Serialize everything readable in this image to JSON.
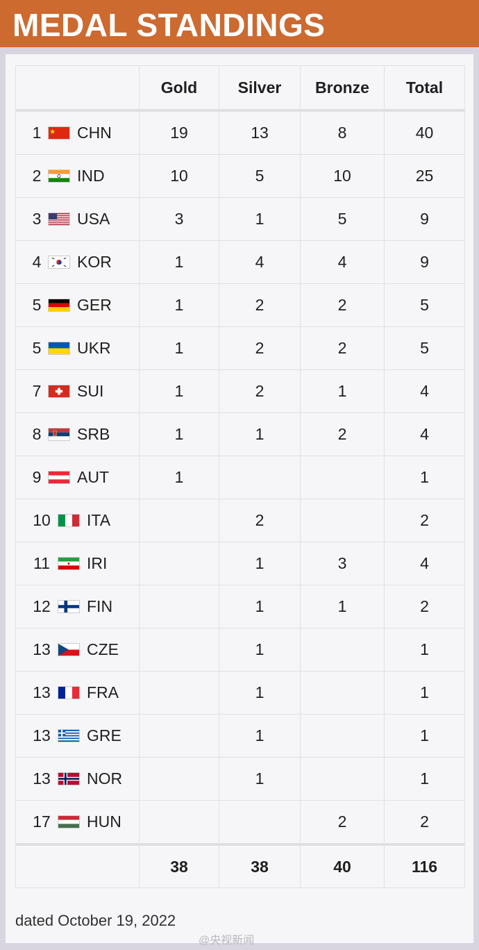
{
  "header": {
    "title": "MEDAL STANDINGS"
  },
  "columns": {
    "gold": "Gold",
    "silver": "Silver",
    "bronze": "Bronze",
    "total": "Total"
  },
  "rows": [
    {
      "rank": "1",
      "code": "CHN",
      "flag": "flag-china",
      "gold": "19",
      "silver": "13",
      "bronze": "8",
      "total": "40"
    },
    {
      "rank": "2",
      "code": "IND",
      "flag": "flag-india",
      "gold": "10",
      "silver": "5",
      "bronze": "10",
      "total": "25"
    },
    {
      "rank": "3",
      "code": "USA",
      "flag": "flag-usa",
      "gold": "3",
      "silver": "1",
      "bronze": "5",
      "total": "9"
    },
    {
      "rank": "4",
      "code": "KOR",
      "flag": "flag-korea",
      "gold": "1",
      "silver": "4",
      "bronze": "4",
      "total": "9"
    },
    {
      "rank": "5",
      "code": "GER",
      "flag": "flag-germany",
      "gold": "1",
      "silver": "2",
      "bronze": "2",
      "total": "5"
    },
    {
      "rank": "5",
      "code": "UKR",
      "flag": "flag-ukraine",
      "gold": "1",
      "silver": "2",
      "bronze": "2",
      "total": "5"
    },
    {
      "rank": "7",
      "code": "SUI",
      "flag": "flag-switzerland",
      "gold": "1",
      "silver": "2",
      "bronze": "1",
      "total": "4"
    },
    {
      "rank": "8",
      "code": "SRB",
      "flag": "flag-serbia",
      "gold": "1",
      "silver": "1",
      "bronze": "2",
      "total": "4"
    },
    {
      "rank": "9",
      "code": "AUT",
      "flag": "flag-austria",
      "gold": "1",
      "silver": "",
      "bronze": "",
      "total": "1"
    },
    {
      "rank": "10",
      "code": "ITA",
      "flag": "flag-italy",
      "gold": "",
      "silver": "2",
      "bronze": "",
      "total": "2"
    },
    {
      "rank": "11",
      "code": "IRI",
      "flag": "flag-iran",
      "gold": "",
      "silver": "1",
      "bronze": "3",
      "total": "4"
    },
    {
      "rank": "12",
      "code": "FIN",
      "flag": "flag-finland",
      "gold": "",
      "silver": "1",
      "bronze": "1",
      "total": "2"
    },
    {
      "rank": "13",
      "code": "CZE",
      "flag": "flag-czechia",
      "gold": "",
      "silver": "1",
      "bronze": "",
      "total": "1"
    },
    {
      "rank": "13",
      "code": "FRA",
      "flag": "flag-france",
      "gold": "",
      "silver": "1",
      "bronze": "",
      "total": "1"
    },
    {
      "rank": "13",
      "code": "GRE",
      "flag": "flag-greece",
      "gold": "",
      "silver": "1",
      "bronze": "",
      "total": "1"
    },
    {
      "rank": "13",
      "code": "NOR",
      "flag": "flag-norway",
      "gold": "",
      "silver": "1",
      "bronze": "",
      "total": "1"
    },
    {
      "rank": "17",
      "code": "HUN",
      "flag": "flag-hungary",
      "gold": "",
      "silver": "",
      "bronze": "2",
      "total": "2"
    }
  ],
  "totals": {
    "gold": "38",
    "silver": "38",
    "bronze": "40",
    "total": "116"
  },
  "footnote": "dated October 19, 2022",
  "watermark": "@央视新闻",
  "colors": {
    "banner": "#cc6a30",
    "gold": "#c29a32",
    "silver": "#a9a9a9",
    "bronze": "#8c5a3c"
  }
}
